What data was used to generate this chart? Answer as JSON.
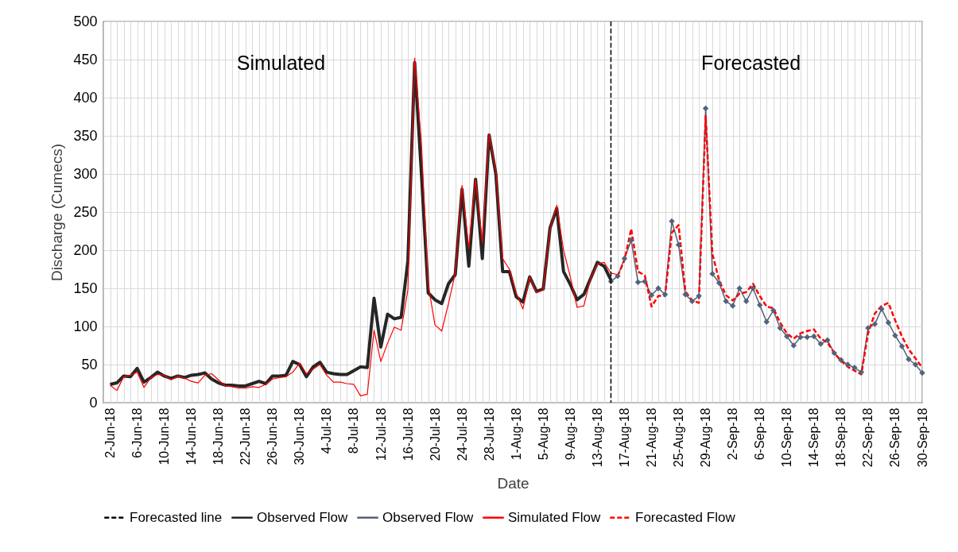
{
  "chart_data": {
    "type": "line",
    "xlabel": "Date",
    "ylabel": "Discharge (Cumecs)",
    "x": [
      "--06-02",
      "--06-03",
      "--06-04",
      "--06-05",
      "--06-06",
      "--06-07",
      "--06-08",
      "--06-09",
      "--06-10",
      "--06-11",
      "--06-12",
      "--06-13",
      "--06-14",
      "--06-15",
      "--06-16",
      "--06-17",
      "--06-18",
      "--06-19",
      "--06-20",
      "--06-21",
      "--06-22",
      "--06-23",
      "--06-24",
      "--06-25",
      "--06-26",
      "--06-27",
      "--06-28",
      "--06-29",
      "--06-30",
      "--07-01",
      "--07-02",
      "--07-03",
      "--07-04",
      "--07-05",
      "--07-06",
      "--07-07",
      "--07-08",
      "--07-09",
      "--07-10",
      "--07-11",
      "--07-12",
      "--07-13",
      "--07-14",
      "--07-15",
      "--07-16",
      "--07-17",
      "--07-18",
      "--07-19",
      "--07-20",
      "--07-21",
      "--07-22",
      "--07-23",
      "--07-24",
      "--07-25",
      "--07-26",
      "--07-27",
      "--07-28",
      "--07-29",
      "--07-30",
      "--07-31",
      "--08-01",
      "--08-02",
      "--08-03",
      "--08-04",
      "--08-05",
      "--08-06",
      "--08-07",
      "--08-08",
      "--08-09",
      "--08-10",
      "--08-11",
      "--08-12",
      "--08-13",
      "--08-14",
      "--08-15",
      "--08-16",
      "--08-17",
      "--08-18",
      "--08-19",
      "--08-20",
      "--08-21",
      "--08-22",
      "--08-23",
      "--08-24",
      "--08-25",
      "--08-26",
      "--08-27",
      "--08-28",
      "--08-29",
      "--08-30",
      "--08-31",
      "--09-01",
      "--09-02",
      "--09-03",
      "--09-04",
      "--09-05",
      "--09-06",
      "--09-07",
      "--09-08",
      "--09-09",
      "--09-10",
      "--09-11",
      "--09-12",
      "--09-13",
      "--09-14",
      "--09-15",
      "--09-16",
      "--09-17",
      "--09-18",
      "--09-19",
      "--09-20",
      "--09-21",
      "--09-22",
      "--09-23",
      "--09-24",
      "--09-25",
      "--09-26",
      "--09-27",
      "--09-28",
      "--09-29",
      "--09-30"
    ],
    "series": [
      {
        "name": "Observed Flow",
        "color": "#262626",
        "line_style": "solid",
        "marker": "none",
        "values": [
          24,
          26,
          35,
          34,
          45,
          27,
          33,
          40,
          35,
          32,
          35,
          33,
          36,
          37,
          39,
          31,
          26,
          23,
          23,
          22,
          22,
          25,
          28,
          25,
          35,
          35,
          36,
          54,
          50,
          34,
          47,
          53,
          40,
          38,
          37,
          37,
          42,
          47,
          46,
          137,
          73,
          116,
          110,
          112,
          186,
          446,
          300,
          144,
          135,
          130,
          156,
          168,
          280,
          179,
          293,
          189,
          351,
          300,
          172,
          172,
          139,
          132,
          165,
          146,
          149,
          229,
          255,
          172,
          155,
          135,
          142,
          163,
          184,
          179,
          161,
          null,
          null,
          null,
          null,
          null,
          null,
          null,
          null,
          null,
          null,
          null,
          null,
          null,
          null,
          null,
          null,
          null,
          null,
          null,
          null,
          null,
          null,
          null,
          null,
          null,
          null,
          null,
          null,
          null,
          null,
          null,
          null,
          null,
          null,
          null,
          null,
          null,
          null,
          null,
          null,
          null,
          null,
          null,
          null,
          null,
          null
        ]
      },
      {
        "name": "Observed Flow",
        "color": "#52627a",
        "line_style": "solid",
        "marker": "diamond",
        "values": [
          null,
          null,
          null,
          null,
          null,
          null,
          null,
          null,
          null,
          null,
          null,
          null,
          null,
          null,
          null,
          null,
          null,
          null,
          null,
          null,
          null,
          null,
          null,
          null,
          null,
          null,
          null,
          null,
          null,
          null,
          null,
          null,
          null,
          null,
          null,
          null,
          null,
          null,
          null,
          null,
          null,
          null,
          null,
          null,
          null,
          null,
          null,
          null,
          null,
          null,
          null,
          null,
          null,
          null,
          null,
          null,
          null,
          null,
          null,
          null,
          null,
          null,
          null,
          null,
          null,
          null,
          null,
          null,
          null,
          null,
          null,
          null,
          null,
          null,
          159,
          166,
          189,
          213,
          158,
          159,
          141,
          150,
          142,
          238,
          207,
          142,
          133,
          140,
          386,
          169,
          157,
          133,
          127,
          150,
          133,
          150,
          128,
          106,
          121,
          98,
          87,
          75,
          86,
          86,
          87,
          77,
          82,
          65,
          56,
          50,
          46,
          40,
          98,
          103,
          123,
          105,
          88,
          74,
          57,
          50,
          39
        ]
      },
      {
        "name": "Simulated Flow",
        "color": "#ff0000",
        "line_style": "solid",
        "marker": "none",
        "values": [
          23,
          16,
          34,
          36,
          40,
          20,
          33,
          37,
          36,
          30,
          35,
          32,
          28,
          26,
          36,
          38,
          30,
          22,
          21,
          19,
          19,
          21,
          20,
          24,
          31,
          33,
          34,
          40,
          52,
          38,
          44,
          50,
          36,
          27,
          27,
          25,
          24,
          9,
          11,
          95,
          54,
          78,
          99,
          95,
          148,
          452,
          340,
          155,
          102,
          94,
          130,
          170,
          285,
          203,
          293,
          210,
          352,
          304,
          189,
          175,
          144,
          123,
          165,
          144,
          148,
          227,
          259,
          200,
          165,
          125,
          127,
          163,
          182,
          184,
          170,
          168,
          null,
          null,
          null,
          null,
          null,
          null,
          null,
          null,
          null,
          null,
          null,
          null,
          null,
          null,
          null,
          null,
          null,
          null,
          null,
          null,
          null,
          null,
          null,
          null,
          null,
          null,
          null,
          null,
          null,
          null,
          null,
          null,
          null,
          null,
          null,
          null,
          null,
          null,
          null,
          null,
          null,
          null,
          null,
          null,
          null
        ]
      },
      {
        "name": "Forecasted Flow",
        "color": "#ff0000",
        "line_style": "dashed",
        "marker": "none",
        "values": [
          null,
          null,
          null,
          null,
          null,
          null,
          null,
          null,
          null,
          null,
          null,
          null,
          null,
          null,
          null,
          null,
          null,
          null,
          null,
          null,
          null,
          null,
          null,
          null,
          null,
          null,
          null,
          null,
          null,
          null,
          null,
          null,
          null,
          null,
          null,
          null,
          null,
          null,
          null,
          null,
          null,
          null,
          null,
          null,
          null,
          null,
          null,
          null,
          null,
          null,
          null,
          null,
          null,
          null,
          null,
          null,
          null,
          null,
          null,
          null,
          null,
          null,
          null,
          null,
          null,
          null,
          null,
          null,
          null,
          null,
          null,
          null,
          null,
          null,
          null,
          166,
          187,
          228,
          172,
          167,
          126,
          140,
          140,
          223,
          233,
          146,
          134,
          131,
          376,
          195,
          160,
          141,
          134,
          143,
          145,
          156,
          140,
          126,
          124,
          105,
          91,
          84,
          91,
          94,
          96,
          84,
          79,
          65,
          55,
          47,
          42,
          37,
          91,
          117,
          127,
          131,
          108,
          87,
          70,
          58,
          46
        ]
      }
    ],
    "ref_lines": [
      {
        "axis": "x",
        "value": "--08-15",
        "label": "Forecasted line",
        "color": "#000000",
        "line_style": "dashed"
      }
    ],
    "annotations": [
      "Simulated",
      "Forecasted"
    ],
    "xlim": [
      "--06-01",
      "--09-30"
    ],
    "xticks": [
      {
        "value": "--06-02",
        "label": "2-Jun-18"
      },
      {
        "value": "--06-03",
        "label": null
      },
      {
        "value": "--06-04",
        "label": null
      },
      {
        "value": "--06-05",
        "label": null
      },
      {
        "value": "--06-06",
        "label": "6-Jun-18"
      },
      {
        "value": "--06-07",
        "label": null
      },
      {
        "value": "--06-08",
        "label": null
      },
      {
        "value": "--06-09",
        "label": null
      },
      {
        "value": "--06-10",
        "label": "10-Jun-18"
      },
      {
        "value": "--06-11",
        "label": null
      },
      {
        "value": "--06-12",
        "label": null
      },
      {
        "value": "--06-13",
        "label": null
      },
      {
        "value": "--06-14",
        "label": "14-Jun-18"
      },
      {
        "value": "--06-15",
        "label": null
      },
      {
        "value": "--06-16",
        "label": null
      },
      {
        "value": "--06-17",
        "label": null
      },
      {
        "value": "--06-18",
        "label": "18-Jun-18"
      },
      {
        "value": "--06-19",
        "label": null
      },
      {
        "value": "--06-20",
        "label": null
      },
      {
        "value": "--06-21",
        "label": null
      },
      {
        "value": "--06-22",
        "label": "22-Jun-18"
      },
      {
        "value": "--06-23",
        "label": null
      },
      {
        "value": "--06-24",
        "label": null
      },
      {
        "value": "--06-25",
        "label": null
      },
      {
        "value": "--06-26",
        "label": "26-Jun-18"
      },
      {
        "value": "--06-27",
        "label": null
      },
      {
        "value": "--06-28",
        "label": null
      },
      {
        "value": "--06-29",
        "label": null
      },
      {
        "value": "--06-30",
        "label": "30-Jun-18"
      },
      {
        "value": "--07-01",
        "label": null
      },
      {
        "value": "--07-02",
        "label": null
      },
      {
        "value": "--07-03",
        "label": null
      },
      {
        "value": "--07-04",
        "label": "4-Jul-18"
      },
      {
        "value": "--07-05",
        "label": null
      },
      {
        "value": "--07-06",
        "label": null
      },
      {
        "value": "--07-07",
        "label": null
      },
      {
        "value": "--07-08",
        "label": "8-Jul-18"
      },
      {
        "value": "--07-09",
        "label": null
      },
      {
        "value": "--07-10",
        "label": null
      },
      {
        "value": "--07-11",
        "label": null
      },
      {
        "value": "--07-12",
        "label": "12-Jul-18"
      },
      {
        "value": "--07-13",
        "label": null
      },
      {
        "value": "--07-14",
        "label": null
      },
      {
        "value": "--07-15",
        "label": null
      },
      {
        "value": "--07-16",
        "label": "16-Jul-18"
      },
      {
        "value": "--07-17",
        "label": null
      },
      {
        "value": "--07-18",
        "label": null
      },
      {
        "value": "--07-19",
        "label": null
      },
      {
        "value": "--07-20",
        "label": "20-Jul-18"
      },
      {
        "value": "--07-21",
        "label": null
      },
      {
        "value": "--07-22",
        "label": null
      },
      {
        "value": "--07-23",
        "label": null
      },
      {
        "value": "--07-24",
        "label": "24-Jul-18"
      },
      {
        "value": "--07-25",
        "label": null
      },
      {
        "value": "--07-26",
        "label": null
      },
      {
        "value": "--07-27",
        "label": null
      },
      {
        "value": "--07-28",
        "label": "28-Jul-18"
      },
      {
        "value": "--07-29",
        "label": null
      },
      {
        "value": "--07-30",
        "label": null
      },
      {
        "value": "--07-31",
        "label": null
      },
      {
        "value": "--08-01",
        "label": "1-Aug-18"
      },
      {
        "value": "--08-02",
        "label": null
      },
      {
        "value": "--08-03",
        "label": null
      },
      {
        "value": "--08-04",
        "label": null
      },
      {
        "value": "--08-05",
        "label": "5-Aug-18"
      },
      {
        "value": "--08-06",
        "label": null
      },
      {
        "value": "--08-07",
        "label": null
      },
      {
        "value": "--08-08",
        "label": null
      },
      {
        "value": "--08-09",
        "label": "9-Aug-18"
      },
      {
        "value": "--08-10",
        "label": null
      },
      {
        "value": "--08-11",
        "label": null
      },
      {
        "value": "--08-12",
        "label": null
      },
      {
        "value": "--08-13",
        "label": "13-Aug-18"
      },
      {
        "value": "--08-14",
        "label": null
      },
      {
        "value": "--08-15",
        "label": null
      },
      {
        "value": "--08-16",
        "label": null
      },
      {
        "value": "--08-17",
        "label": "17-Aug-18"
      },
      {
        "value": "--08-18",
        "label": null
      },
      {
        "value": "--08-19",
        "label": null
      },
      {
        "value": "--08-20",
        "label": null
      },
      {
        "value": "--08-21",
        "label": "21-Aug-18"
      },
      {
        "value": "--08-22",
        "label": null
      },
      {
        "value": "--08-23",
        "label": null
      },
      {
        "value": "--08-24",
        "label": null
      },
      {
        "value": "--08-25",
        "label": "25-Aug-18"
      },
      {
        "value": "--08-26",
        "label": null
      },
      {
        "value": "--08-27",
        "label": null
      },
      {
        "value": "--08-28",
        "label": null
      },
      {
        "value": "--08-29",
        "label": "29-Aug-18"
      },
      {
        "value": "--08-30",
        "label": null
      },
      {
        "value": "--08-31",
        "label": null
      },
      {
        "value": "--09-01",
        "label": null
      },
      {
        "value": "--09-02",
        "label": "2-Sep-18"
      },
      {
        "value": "--09-03",
        "label": null
      },
      {
        "value": "--09-04",
        "label": null
      },
      {
        "value": "--09-05",
        "label": null
      },
      {
        "value": "--09-06",
        "label": "6-Sep-18"
      },
      {
        "value": "--09-07",
        "label": null
      },
      {
        "value": "--09-08",
        "label": null
      },
      {
        "value": "--09-09",
        "label": null
      },
      {
        "value": "--09-10",
        "label": "10-Sep-18"
      },
      {
        "value": "--09-11",
        "label": null
      },
      {
        "value": "--09-12",
        "label": null
      },
      {
        "value": "--09-13",
        "label": null
      },
      {
        "value": "--09-14",
        "label": "14-Sep-18"
      },
      {
        "value": "--09-15",
        "label": null
      },
      {
        "value": "--09-16",
        "label": null
      },
      {
        "value": "--09-17",
        "label": null
      },
      {
        "value": "--09-18",
        "label": "18-Sep-18"
      },
      {
        "value": "--09-19",
        "label": null
      },
      {
        "value": "--09-20",
        "label": null
      },
      {
        "value": "--09-21",
        "label": null
      },
      {
        "value": "--09-22",
        "label": "22-Sep-18"
      },
      {
        "value": "--09-23",
        "label": null
      },
      {
        "value": "--09-24",
        "label": null
      },
      {
        "value": "--09-25",
        "label": null
      },
      {
        "value": "--09-26",
        "label": "26-Sep-18"
      },
      {
        "value": "--09-27",
        "label": null
      },
      {
        "value": "--09-28",
        "label": null
      },
      {
        "value": "--09-29",
        "label": null
      },
      {
        "value": "--09-30",
        "label": "30-Sep-18"
      }
    ],
    "ylim": [
      0,
      500
    ],
    "yticks": [
      0,
      50,
      100,
      150,
      200,
      250,
      300,
      350,
      400,
      450,
      500
    ],
    "grid": true,
    "legend": "bottom"
  }
}
